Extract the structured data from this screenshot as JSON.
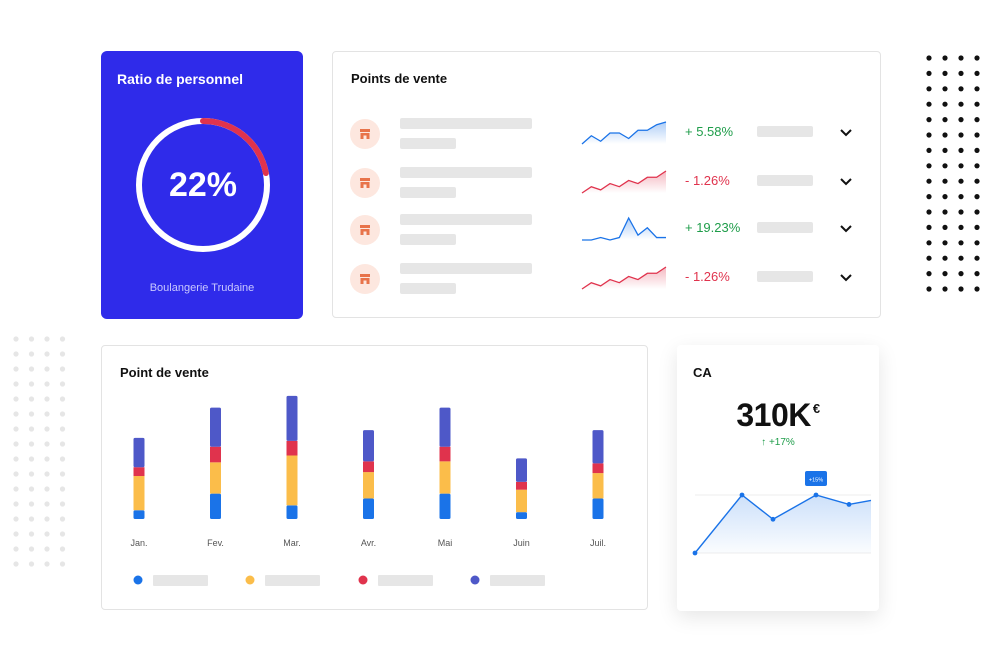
{
  "ratio": {
    "title": "Ratio de personnel",
    "percent_label": "22%",
    "percent": 22,
    "store": "Boulangerie Trudaine",
    "colors": {
      "background": "#2f2bea",
      "accent": "#e0334d"
    }
  },
  "points_de_vente": {
    "title": "Points de vente",
    "rows": [
      {
        "change": "+ 5.58%",
        "trend": "up",
        "spark": [
          3,
          6,
          4,
          7,
          7,
          5,
          8,
          8,
          10,
          11
        ]
      },
      {
        "change": "- 1.26%",
        "trend": "down",
        "spark": [
          3,
          5,
          4,
          6,
          5,
          7,
          6,
          8,
          8,
          10
        ]
      },
      {
        "change": "+ 19.23%",
        "trend": "up",
        "spark": [
          3,
          3,
          4,
          3,
          4,
          12,
          5,
          8,
          4,
          4
        ]
      },
      {
        "change": "- 1.26%",
        "trend": "down",
        "spark": [
          3,
          5,
          4,
          6,
          5,
          7,
          6,
          8,
          8,
          10
        ]
      }
    ]
  },
  "point_de_vente": {
    "title": "Point de vente"
  },
  "chart_data": {
    "type": "bar",
    "stacked": true,
    "categories": [
      "Jan.",
      "Fev.",
      "Mar.",
      "Avr.",
      "Mai",
      "Juin",
      "Juil."
    ],
    "series": [
      {
        "values": [
          9,
          26,
          14,
          21,
          26,
          7,
          21
        ],
        "color": "#1a73e8"
      },
      {
        "values": [
          35,
          32,
          51,
          27,
          33,
          23,
          26
        ],
        "color": "#fbbd4a"
      },
      {
        "values": [
          9,
          16,
          15,
          11,
          15,
          8,
          10
        ],
        "color": "#e0334d"
      },
      {
        "values": [
          30,
          40,
          46,
          32,
          40,
          24,
          34
        ],
        "color": "#4e58c8"
      }
    ],
    "ylim": [
      0,
      130
    ],
    "legend": "bottom"
  },
  "ca": {
    "title": "CA",
    "value": "310K",
    "currency": "€",
    "change": "↑ +17%",
    "badge": "+15%",
    "line": [
      1,
      5.3,
      3.5,
      5.3,
      4.6,
      4.9
    ]
  }
}
